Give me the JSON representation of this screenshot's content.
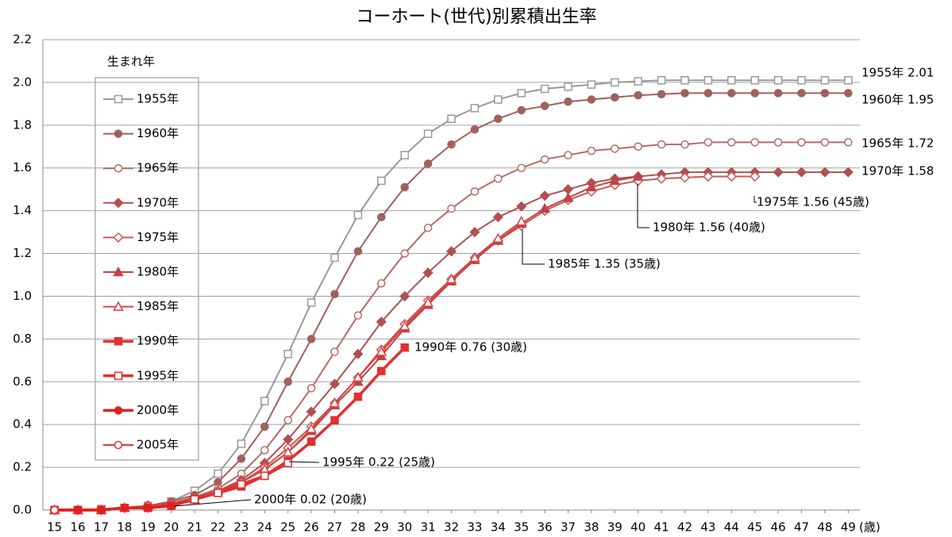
{
  "chart_data": {
    "type": "line",
    "title": "コーホート(世代)別累積出生率",
    "x_label": "(歳)",
    "legend_title": "生まれ年",
    "x": [
      15,
      16,
      17,
      18,
      19,
      20,
      21,
      22,
      23,
      24,
      25,
      26,
      27,
      28,
      29,
      30,
      31,
      32,
      33,
      34,
      35,
      36,
      37,
      38,
      39,
      40,
      41,
      42,
      43,
      44,
      45,
      46,
      47,
      48,
      49
    ],
    "xlim": [
      14.5,
      49.5
    ],
    "xticks": [
      15,
      16,
      17,
      18,
      19,
      20,
      21,
      22,
      23,
      24,
      25,
      26,
      27,
      28,
      29,
      30,
      31,
      32,
      33,
      34,
      35,
      36,
      37,
      38,
      39,
      40,
      41,
      42,
      43,
      44,
      45,
      46,
      47,
      48,
      49
    ],
    "ylim": [
      0,
      2.2
    ],
    "yticks": [
      {
        "value": 0,
        "label": "0.0"
      },
      0.2,
      0.4,
      0.6,
      0.8,
      {
        "value": 1,
        "label": "1.0"
      },
      1.2,
      1.4,
      1.6,
      1.8,
      {
        "value": 2,
        "label": "2.0"
      },
      2.2
    ],
    "grid": true,
    "series": [
      {
        "name": "1955年",
        "color": "#999999",
        "marker": "square-open",
        "line_width": 2,
        "values": [
          0,
          0,
          0.005,
          0.01,
          0.02,
          0.04,
          0.09,
          0.17,
          0.31,
          0.51,
          0.73,
          0.97,
          1.18,
          1.38,
          1.54,
          1.66,
          1.76,
          1.83,
          1.88,
          1.92,
          1.95,
          1.97,
          1.98,
          1.99,
          2.0,
          2.005,
          2.01,
          2.01,
          2.01,
          2.01,
          2.01,
          2.01,
          2.01,
          2.01,
          2.01
        ]
      },
      {
        "name": "1960年",
        "color": "#a0605c",
        "marker": "circle",
        "line_width": 2,
        "values": [
          0,
          0,
          0,
          0.01,
          0.02,
          0.04,
          0.07,
          0.13,
          0.24,
          0.39,
          0.6,
          0.8,
          1.01,
          1.21,
          1.37,
          1.51,
          1.62,
          1.71,
          1.78,
          1.83,
          1.87,
          1.89,
          1.91,
          1.92,
          1.93,
          1.94,
          1.945,
          1.95,
          1.95,
          1.95,
          1.95,
          1.95,
          1.95,
          1.95,
          1.95
        ]
      },
      {
        "name": "1965年",
        "color": "#b86a66",
        "marker": "circle-open",
        "line_width": 2,
        "values": [
          0,
          0,
          0,
          0.01,
          0.02,
          0.03,
          0.06,
          0.1,
          0.17,
          0.28,
          0.42,
          0.57,
          0.74,
          0.91,
          1.06,
          1.2,
          1.32,
          1.41,
          1.49,
          1.55,
          1.6,
          1.64,
          1.66,
          1.68,
          1.69,
          1.7,
          1.71,
          1.71,
          1.72,
          1.72,
          1.72,
          1.72,
          1.72,
          1.72,
          1.72
        ]
      },
      {
        "name": "1970年",
        "color": "#b05050",
        "marker": "diamond",
        "line_width": 2,
        "values": [
          0,
          0,
          0,
          0.01,
          0.02,
          0.03,
          0.06,
          0.09,
          0.14,
          0.22,
          0.33,
          0.46,
          0.59,
          0.73,
          0.88,
          1.0,
          1.11,
          1.21,
          1.3,
          1.37,
          1.42,
          1.47,
          1.5,
          1.53,
          1.55,
          1.56,
          1.57,
          1.58,
          1.58,
          1.58,
          1.58,
          1.58,
          1.58,
          1.58,
          1.58
        ]
      },
      {
        "name": "1975年",
        "color": "#cc5555",
        "marker": "diamond-open",
        "line_width": 2,
        "values": [
          0,
          0,
          0,
          0.01,
          0.02,
          0.03,
          0.05,
          0.09,
          0.13,
          0.2,
          0.29,
          0.39,
          0.5,
          0.62,
          0.75,
          0.87,
          0.98,
          1.08,
          1.18,
          1.26,
          1.33,
          1.4,
          1.45,
          1.49,
          1.52,
          1.54,
          1.55,
          1.555,
          1.56,
          1.56,
          1.56,
          null,
          null,
          null,
          null
        ]
      },
      {
        "name": "1980年",
        "color": "#c04444",
        "marker": "triangle",
        "line_width": 2,
        "values": [
          0,
          0,
          0,
          0.01,
          0.02,
          0.03,
          0.05,
          0.09,
          0.13,
          0.19,
          0.27,
          0.37,
          0.49,
          0.6,
          0.72,
          0.85,
          0.96,
          1.07,
          1.17,
          1.26,
          1.34,
          1.41,
          1.46,
          1.51,
          1.54,
          1.56,
          null,
          null,
          null,
          null,
          null,
          null,
          null,
          null,
          null
        ]
      },
      {
        "name": "1985年",
        "color": "#d84444",
        "marker": "triangle-open",
        "line_width": 2,
        "values": [
          0,
          0,
          0,
          0.01,
          0.02,
          0.03,
          0.05,
          0.09,
          0.13,
          0.19,
          0.27,
          0.38,
          0.5,
          0.62,
          0.74,
          0.86,
          0.97,
          1.08,
          1.18,
          1.27,
          1.35,
          null,
          null,
          null,
          null,
          null,
          null,
          null,
          null,
          null,
          null,
          null,
          null,
          null,
          null
        ]
      },
      {
        "name": "1990年",
        "color": "#e03030",
        "marker": "square",
        "line_width": 3.5,
        "values": [
          0,
          0,
          0,
          0.01,
          0.01,
          0.02,
          0.05,
          0.08,
          0.11,
          0.16,
          0.23,
          0.32,
          0.42,
          0.53,
          0.65,
          0.76,
          null,
          null,
          null,
          null,
          null,
          null,
          null,
          null,
          null,
          null,
          null,
          null,
          null,
          null,
          null,
          null,
          null,
          null,
          null
        ]
      },
      {
        "name": "1995年",
        "color": "#e03030",
        "marker": "square-open",
        "line_width": 3.5,
        "values": [
          0,
          0,
          0,
          0.01,
          0.01,
          0.02,
          0.05,
          0.08,
          0.12,
          0.16,
          0.22,
          null,
          null,
          null,
          null,
          null,
          null,
          null,
          null,
          null,
          null,
          null,
          null,
          null,
          null,
          null,
          null,
          null,
          null,
          null,
          null,
          null,
          null,
          null,
          null
        ]
      },
      {
        "name": "2000年",
        "color": "#e02020",
        "marker": "circle",
        "line_width": 3.5,
        "values": [
          0,
          0,
          0,
          0.01,
          0.01,
          0.02,
          null,
          null,
          null,
          null,
          null,
          null,
          null,
          null,
          null,
          null,
          null,
          null,
          null,
          null,
          null,
          null,
          null,
          null,
          null,
          null,
          null,
          null,
          null,
          null,
          null,
          null,
          null,
          null,
          null
        ]
      },
      {
        "name": "2005年",
        "color": "#e83030",
        "marker": "circle-open",
        "line_width": 2,
        "values": [
          0,
          null,
          null,
          null,
          null,
          null,
          null,
          null,
          null,
          null,
          null,
          null,
          null,
          null,
          null,
          null,
          null,
          null,
          null,
          null,
          null,
          null,
          null,
          null,
          null,
          null,
          null,
          null,
          null,
          null,
          null,
          null,
          null,
          null,
          null
        ]
      }
    ],
    "annotations": [
      "1955年 2.01",
      "1960年 1.95",
      "1965年 1.72",
      "1970年 1.58",
      "1975年 1.56 (45歳)",
      "1980年 1.56 (40歳)",
      "1985年 1.35 (35歳)",
      "1990年 0.76 (30歳)",
      "1995年 0.22 (25歳)",
      "2000年 0.02 (20歳)"
    ]
  }
}
